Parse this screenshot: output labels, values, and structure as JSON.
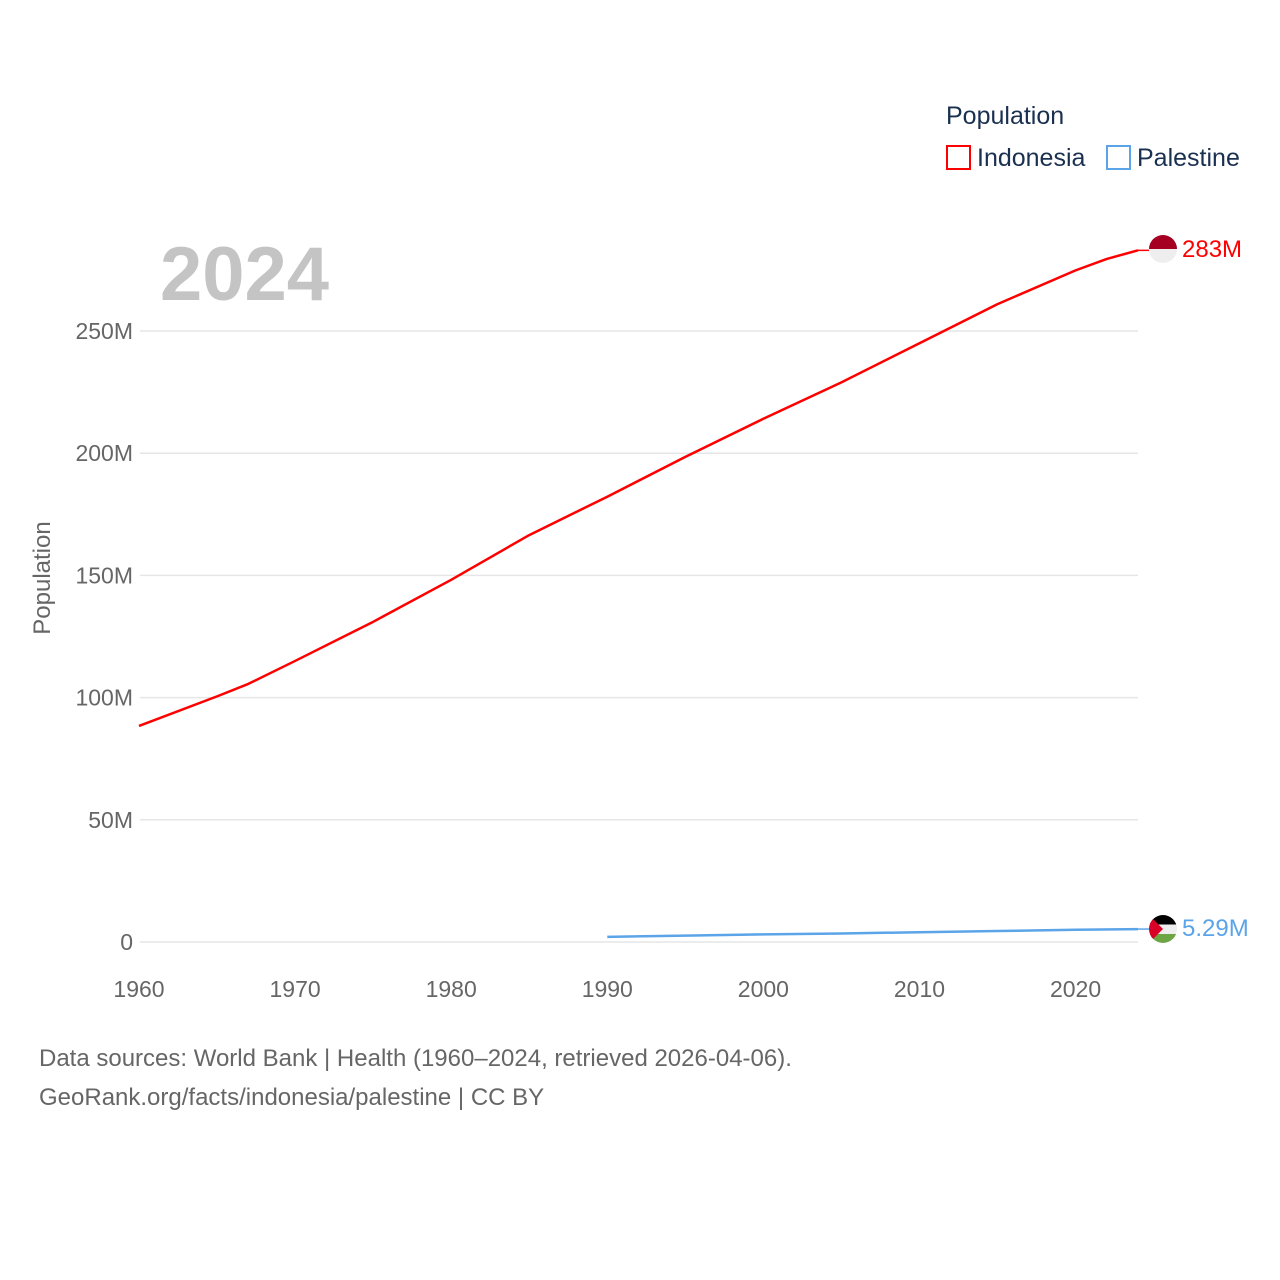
{
  "chart_data": {
    "type": "line",
    "year_watermark": "2024",
    "ylabel": "Population",
    "xlabel": "",
    "xlim": [
      1960,
      2024
    ],
    "ylim": [
      0,
      283
    ],
    "y_unit": "millions",
    "x_ticks": [
      1960,
      1970,
      1980,
      1990,
      2000,
      2010,
      2020
    ],
    "y_ticks": [
      0,
      50,
      100,
      150,
      200,
      250
    ],
    "y_tick_labels": [
      "0",
      "50M",
      "100M",
      "150M",
      "200M",
      "250M"
    ],
    "grid": true,
    "legend": {
      "title": "Population",
      "placement": "top-right"
    },
    "series": [
      {
        "name": "Indonesia",
        "color": "#ff0000",
        "end_label": "283M",
        "flag": "indonesia-flag",
        "x": [
          1960,
          1965,
          1967,
          1970,
          1975,
          1980,
          1985,
          1990,
          1995,
          2000,
          2005,
          2010,
          2015,
          2020,
          2022,
          2024
        ],
        "values": [
          88.4,
          100.5,
          105.6,
          115.0,
          131.0,
          148.2,
          166.5,
          182.2,
          198.5,
          214.1,
          229.0,
          245.0,
          261.0,
          274.8,
          279.5,
          283.0
        ]
      },
      {
        "name": "Palestine",
        "color": "#5ba4e8",
        "end_label": "5.29M",
        "flag": "palestine-flag",
        "x": [
          1990,
          1995,
          2000,
          2005,
          2010,
          2015,
          2020,
          2024
        ],
        "values": [
          2.1,
          2.6,
          3.1,
          3.5,
          4.0,
          4.5,
          5.0,
          5.29
        ]
      }
    ]
  },
  "footer": {
    "line1": "Data sources: World Bank | Health (1960–2024, retrieved 2026-04-06).",
    "line2": "GeoRank.org/facts/indonesia/palestine | CC BY"
  }
}
